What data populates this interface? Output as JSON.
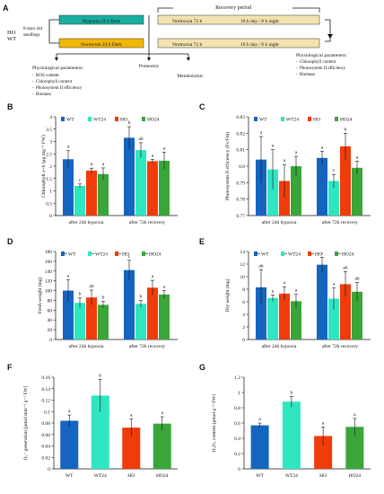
{
  "panel_A": {
    "label": "A",
    "group": [
      "HO",
      "WT"
    ],
    "seedlings": [
      "8-days old",
      "seedlings"
    ],
    "recovery_period": "Recovery period",
    "hypoxia_box": "Hypoxia 24 h Dark",
    "normoxia_24_box": "Normoxia 24 h Dark",
    "normoxia_72_label": "Normoxia 72 h",
    "photoperiod": "16 h day / 8 h night",
    "physio_left_title": "Physiological parameters:",
    "physio_left_items": [
      "ROS content",
      "Chlorophyll content",
      "Photosystem II efficiency",
      "Biomass"
    ],
    "proteomic": "Proteomic",
    "metabolomic": "Metabolomic",
    "physio_right_title": "Physiological parameters:",
    "physio_right_items": [
      "Chlorophyll content",
      "Photosystem II efficiency",
      "Biomass"
    ],
    "colors": {
      "hypoxia": "#1aaea0",
      "normoxia": "#f2b705",
      "recovery": "#f2e3b0"
    }
  },
  "legend_entries": [
    "WT",
    "WT24",
    "HO",
    "HO24"
  ],
  "series_colors": [
    "#1565c0",
    "#2ee6c0",
    "#f03c0a",
    "#3aa63a"
  ],
  "chart_data": [
    {
      "panel": "B",
      "type": "bar",
      "categories": [
        "after 24h hypoxia",
        "after 72h recovery"
      ],
      "series": [
        {
          "name": "WT",
          "values": [
            2.28,
            3.15
          ],
          "errors": [
            0.35,
            0.45
          ],
          "letters": [
            "a",
            "b"
          ]
        },
        {
          "name": "WT24",
          "values": [
            1.2,
            2.65
          ],
          "errors": [
            0.08,
            0.3
          ],
          "letters": [
            "c",
            "ab"
          ]
        },
        {
          "name": "HO",
          "values": [
            1.82,
            2.2
          ],
          "errors": [
            0.1,
            0.08
          ],
          "letters": [
            "a",
            "a"
          ]
        },
        {
          "name": "HO24",
          "values": [
            1.68,
            2.22
          ],
          "errors": [
            0.25,
            0.35
          ],
          "letters": [
            "a",
            "a"
          ]
        }
      ],
      "ylabel": "Chlorophyll a+b (µg mg⁻¹ FW)",
      "ylim": [
        0,
        4
      ],
      "yticks": [
        "0",
        "0.5",
        "1",
        "1.5",
        "2",
        "2.5",
        "3",
        "3.5",
        "4"
      ],
      "legend": "top-left",
      "legend_dash": false
    },
    {
      "panel": "C",
      "type": "bar",
      "categories": [
        "after 24h hypoxia",
        "after 72h recovery"
      ],
      "series": [
        {
          "name": "WT",
          "values": [
            0.804,
            0.805
          ],
          "errors": [
            0.014,
            0.004
          ],
          "letters": [
            "a",
            "a"
          ]
        },
        {
          "name": "WT24",
          "values": [
            0.798,
            0.791
          ],
          "errors": [
            0.012,
            0.004
          ],
          "letters": [
            "a",
            "c"
          ]
        },
        {
          "name": "HO",
          "values": [
            0.791,
            0.812
          ],
          "errors": [
            0.01,
            0.008
          ],
          "letters": [
            "a",
            "b"
          ]
        },
        {
          "name": "HO24",
          "values": [
            0.8,
            0.799
          ],
          "errors": [
            0.006,
            0.004
          ],
          "letters": [
            "a",
            "a"
          ]
        }
      ],
      "ylabel": "Photosystem II efficiency (Fv/Fm)",
      "ylim": [
        0.77,
        0.83
      ],
      "yticks": [
        "0.77",
        "0.78",
        "0.79",
        "0.8",
        "0.81",
        "0.82",
        "0.83"
      ],
      "legend": "top-left",
      "legend_dash": false
    },
    {
      "panel": "D",
      "type": "bar",
      "categories": [
        "after 24h hypoxia",
        "after 72h recovery"
      ],
      "series": [
        {
          "name": "WT",
          "values": [
            100,
            142
          ],
          "errors": [
            22,
            20
          ],
          "letters": [
            "a",
            "c"
          ]
        },
        {
          "name": "WT24",
          "values": [
            75,
            73
          ],
          "errors": [
            10,
            7
          ],
          "letters": [
            "b",
            "b"
          ]
        },
        {
          "name": "HO",
          "values": [
            86,
            106
          ],
          "errors": [
            15,
            15
          ],
          "letters": [
            "ab",
            "a"
          ]
        },
        {
          "name": "HO24",
          "values": [
            71,
            92
          ],
          "errors": [
            7,
            8
          ],
          "letters": [
            "b",
            "a"
          ]
        }
      ],
      "ylabel": "Fresh weight (mg)",
      "ylim": [
        0,
        180
      ],
      "yticks": [
        "0",
        "20",
        "40",
        "60",
        "80",
        "100",
        "120",
        "140",
        "160",
        "180"
      ],
      "legend": "top-left",
      "legend_dash": true
    },
    {
      "panel": "E",
      "type": "bar",
      "categories": [
        "after 24h hypoxia",
        "after 72h recovery"
      ],
      "series": [
        {
          "name": "WT",
          "values": [
            8.3,
            11.9
          ],
          "errors": [
            2.8,
            1.2
          ],
          "letters": [
            "ab",
            "c"
          ]
        },
        {
          "name": "WT24",
          "values": [
            6.6,
            6.5
          ],
          "errors": [
            0.5,
            1.7
          ],
          "letters": [
            "a",
            "a"
          ]
        },
        {
          "name": "HO",
          "values": [
            7.3,
            8.8
          ],
          "errors": [
            1.1,
            2.0
          ],
          "letters": [
            "a",
            "ab"
          ]
        },
        {
          "name": "HO24",
          "values": [
            6.1,
            7.6
          ],
          "errors": [
            1.1,
            1.5
          ],
          "letters": [
            "a",
            "ab"
          ]
        }
      ],
      "ylabel": "Dry weight (mg)",
      "ylim": [
        0,
        14
      ],
      "yticks": [
        "0",
        "2",
        "4",
        "6",
        "8",
        "10",
        "12",
        "14"
      ],
      "legend": "top-left",
      "legend_dash": true
    },
    {
      "panel": "F",
      "type": "bar",
      "categories": [
        "WT",
        "WT24",
        "HO",
        "HO24"
      ],
      "values": [
        0.084,
        0.128,
        0.072,
        0.079
      ],
      "errors": [
        0.01,
        0.028,
        0.015,
        0.012
      ],
      "letters": [
        "a",
        "b",
        "a",
        "a"
      ],
      "ylabel": "O₂⁻ generation [µmol min⁻¹ g⁻¹ FW]",
      "ylim": [
        0,
        0.16
      ],
      "yticks": [
        "0",
        "0.02",
        "0.04",
        "0.06",
        "0.08",
        "0.1",
        "0.12",
        "0.14",
        "0.16"
      ]
    },
    {
      "panel": "G",
      "type": "bar",
      "categories": [
        "WT",
        "WT24",
        "HO",
        "HO24"
      ],
      "values": [
        0.57,
        0.88,
        0.43,
        0.55
      ],
      "errors": [
        0.03,
        0.07,
        0.12,
        0.11
      ],
      "letters": [
        "a",
        "b",
        "a",
        "a"
      ],
      "ylabel": "H₂O₂ content [µmol g⁻¹ FW]",
      "ylim": [
        0,
        1.2
      ],
      "yticks": [
        "0",
        "0.2",
        "0.4",
        "0.6",
        "0.8",
        "1",
        "1.2"
      ]
    }
  ]
}
